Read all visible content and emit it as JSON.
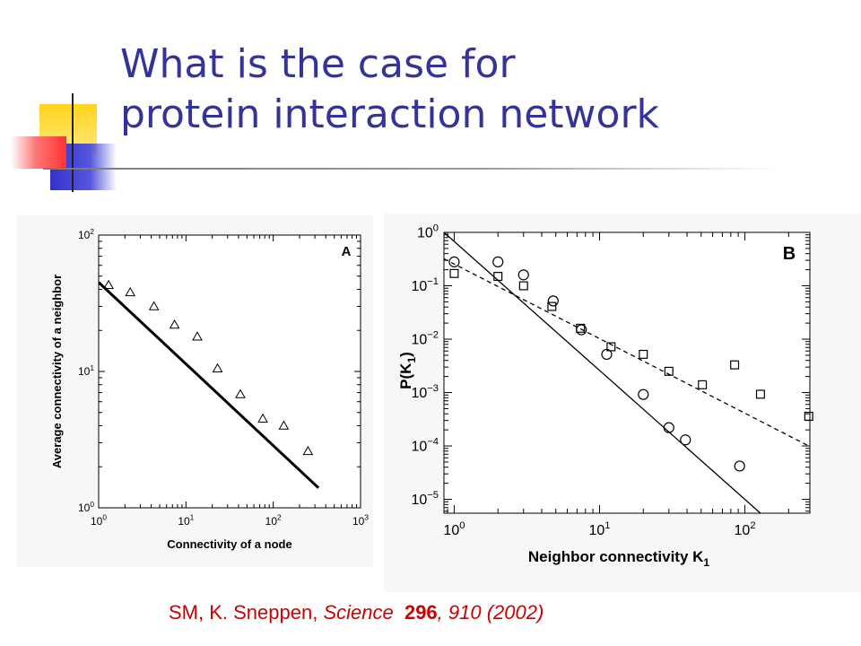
{
  "slide": {
    "title_line1": "What is the case for",
    "title_line2": "protein interaction network",
    "citation": {
      "authors": "SM, K. Sneppen, ",
      "journal": "Science",
      "volume": "296",
      "rest": ", 910 (2002)"
    },
    "colors": {
      "title": "#33339a",
      "citation": "#cc0000",
      "deco_yellow": "#ffcc00",
      "deco_blue": "#3333cc",
      "deco_red": "#ff3333"
    }
  },
  "chart_data": [
    {
      "type": "scatter",
      "panel_label": "A",
      "xlabel": "Connectivity of a node",
      "ylabel": "Average connectivity of a neighbor",
      "x_scale": "log",
      "y_scale": "log",
      "xlim": [
        1,
        1000
      ],
      "ylim": [
        1,
        100
      ],
      "x_ticks": [
        1,
        10,
        100,
        1000
      ],
      "y_ticks": [
        1,
        10,
        100
      ],
      "x_tick_labels": [
        {
          "base": "10",
          "exp": "0"
        },
        {
          "base": "10",
          "exp": "1"
        },
        {
          "base": "10",
          "exp": "2"
        },
        {
          "base": "10",
          "exp": "3"
        }
      ],
      "y_tick_labels": [
        {
          "base": "10",
          "exp": "0"
        },
        {
          "base": "10",
          "exp": "1"
        },
        {
          "base": "10",
          "exp": "2"
        }
      ],
      "series": [
        {
          "marker": "triangle",
          "points": [
            [
              1.3,
              43
            ],
            [
              2.3,
              38
            ],
            [
              4.3,
              30
            ],
            [
              7.4,
              22
            ],
            [
              13.5,
              18
            ],
            [
              23,
              10.5
            ],
            [
              42,
              6.8
            ],
            [
              76,
              4.5
            ],
            [
              132,
              4.0
            ],
            [
              250,
              2.6
            ]
          ]
        },
        {
          "marker": "line-thick",
          "line": [
            [
              1,
              45
            ],
            [
              330,
              1.4
            ]
          ]
        }
      ]
    },
    {
      "type": "scatter",
      "panel_label": "B",
      "xlabel_main": "Neighbor connectivity K",
      "xlabel_sub": "1",
      "ylabel_main": "P(K",
      "ylabel_sub": "1",
      "ylabel_end": ")",
      "x_scale": "log",
      "y_scale": "log",
      "xlim": [
        0.85,
        280
      ],
      "ylim": [
        5.5e-06,
        1
      ],
      "x_ticks": [
        1,
        10,
        100
      ],
      "y_ticks": [
        1e-05,
        0.0001,
        0.001,
        0.01,
        0.1,
        1
      ],
      "x_tick_labels": [
        {
          "base": "10",
          "exp": "0"
        },
        {
          "base": "10",
          "exp": "1"
        },
        {
          "base": "10",
          "exp": "2"
        }
      ],
      "y_tick_labels": [
        {
          "base": "10",
          "exp": "−5"
        },
        {
          "base": "10",
          "exp": "−4"
        },
        {
          "base": "10",
          "exp": "−3"
        },
        {
          "base": "10",
          "exp": "−2"
        },
        {
          "base": "10",
          "exp": "−1"
        },
        {
          "base": "10",
          "exp": "0"
        }
      ],
      "series": [
        {
          "marker": "circle",
          "points": [
            [
              1.0,
              0.28
            ],
            [
              2.0,
              0.28
            ],
            [
              3.0,
              0.16
            ],
            [
              4.8,
              0.052
            ],
            [
              7.5,
              0.015
            ],
            [
              11.2,
              0.0052
            ],
            [
              20,
              0.00092
            ],
            [
              30,
              0.00022
            ],
            [
              39,
              0.00013
            ],
            [
              92,
              4.2e-05
            ]
          ]
        },
        {
          "marker": "square",
          "points": [
            [
              1.0,
              0.17
            ],
            [
              2.0,
              0.15
            ],
            [
              3.0,
              0.1
            ],
            [
              4.7,
              0.041
            ],
            [
              7.4,
              0.016
            ],
            [
              12,
              0.0072
            ],
            [
              20,
              0.0052
            ],
            [
              30,
              0.0025
            ],
            [
              51,
              0.0014
            ],
            [
              85,
              0.0033
            ],
            [
              128,
              0.00093
            ],
            [
              275,
              0.00036
            ]
          ]
        },
        {
          "marker": "line-solid",
          "line": [
            [
              0.85,
              1
            ],
            [
              128,
              5.5e-06
            ]
          ]
        },
        {
          "marker": "line-dashed",
          "line": [
            [
              0.85,
              0.32
            ],
            [
              275,
              0.0001
            ]
          ]
        }
      ]
    }
  ]
}
